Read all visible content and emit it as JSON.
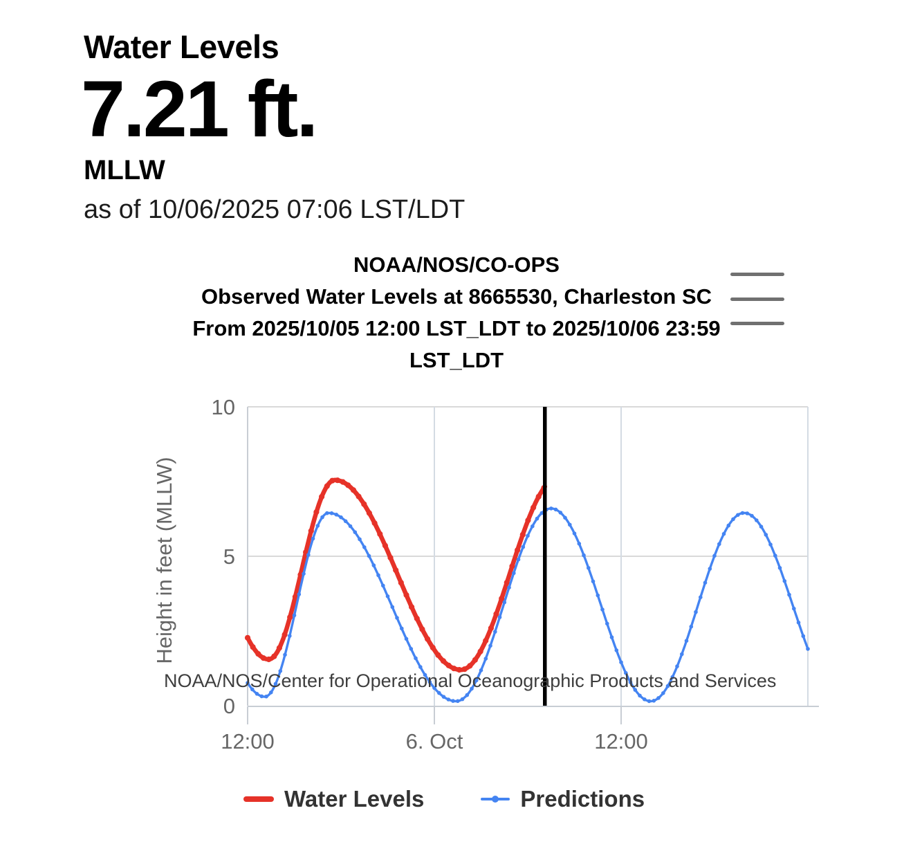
{
  "header": {
    "title": "Water Levels",
    "value": "7.21 ft.",
    "datum": "MLLW",
    "as_of": "as of 10/06/2025 07:06 LST/LDT"
  },
  "chart": {
    "title_lines": [
      "NOAA/NOS/CO-OPS",
      "Observed Water Levels at 8665530, Charleston SC",
      "From 2025/10/05 12:00 LST_LDT to 2025/10/06 23:59",
      "LST_LDT"
    ],
    "menu_icon": "hamburger-menu-icon",
    "watermark": "NOAA/NOS/Center for Operational Oceanographic Products and Services"
  },
  "chart_data": {
    "type": "line",
    "title": "NOAA/NOS/CO-OPS Observed Water Levels at 8665530, Charleston SC From 2025/10/05 12:00 LST_LDT to 2025/10/06 23:59 LST_LDT",
    "xlabel": "",
    "ylabel": "Height in feet (MLLW)",
    "ylim": [
      0,
      10
    ],
    "y_ticks": [
      {
        "value": 0,
        "label": "0"
      },
      {
        "value": 5,
        "label": "5"
      },
      {
        "value": 10,
        "label": "10"
      }
    ],
    "x_axis_note": "hours since 2025/10/05 12:00 LST_LDT",
    "x_hours_range": [
      0,
      36
    ],
    "x_ticks": [
      {
        "hour": 0,
        "label": "12:00"
      },
      {
        "hour": 12,
        "label": "6. Oct"
      },
      {
        "hour": 24,
        "label": "12:00"
      }
    ],
    "grid": true,
    "legend_position": "bottom",
    "now_marker_hour": 19.1,
    "colors": {
      "water_levels": "#e63228",
      "predictions": "#4484f2",
      "now_line": "#000000",
      "grid": "#d9d9d9",
      "axis": "#c8cdd4",
      "tick_text": "#666666"
    },
    "series": [
      {
        "name": "Water Levels",
        "color": "#e63228",
        "style": "thick-solid",
        "visible_hours": [
          0,
          19.1
        ],
        "interpolation": "cosine-between-extremes",
        "extreme_keypoints_hour_ft": [
          [
            -4.5,
            7.3
          ],
          [
            1.35,
            1.55
          ],
          [
            5.6,
            7.55
          ],
          [
            13.7,
            1.2
          ],
          [
            20.0,
            7.65
          ]
        ],
        "readings_ft": {
          "start": 2.4,
          "first_low": 1.55,
          "high": 7.55,
          "second_low": 1.2,
          "latest": 7.21
        }
      },
      {
        "name": "Predictions",
        "color": "#4484f2",
        "style": "dotted-markers",
        "visible_hours": [
          0,
          36
        ],
        "interpolation": "cosine-between-extremes",
        "extreme_keypoints_hour_ft": [
          [
            -5.1,
            6.4
          ],
          [
            1.1,
            0.3
          ],
          [
            5.2,
            6.45
          ],
          [
            13.4,
            0.15
          ],
          [
            19.5,
            6.6
          ],
          [
            25.9,
            0.15
          ],
          [
            31.9,
            6.45
          ],
          [
            38.2,
            0.2
          ]
        ],
        "readings_ft": {
          "start": 0.55,
          "low1": 0.3,
          "high1": 6.45,
          "low2": 0.15,
          "high2": 6.6,
          "low3": 0.15,
          "high3": 6.45,
          "end": 2.15
        }
      }
    ]
  }
}
